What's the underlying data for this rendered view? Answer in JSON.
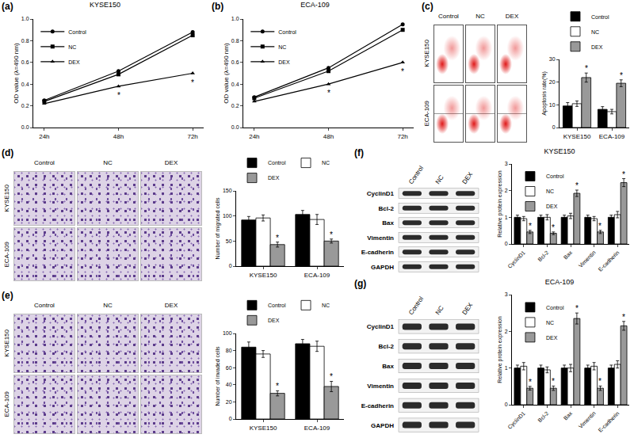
{
  "chart_data": [
    {
      "panel_label": "(a)",
      "type": "line",
      "title": "KYSE150",
      "categories": [
        "24h",
        "48h",
        "72h"
      ],
      "y_label": "OD value (λ=490 nm)",
      "ylim": [
        0,
        1
      ],
      "yticks": [
        {
          "value": 0,
          "label": "0.0"
        },
        {
          "value": 0.2,
          "label": "0.2"
        },
        {
          "value": 0.4,
          "label": "0.4"
        },
        {
          "value": 0.6,
          "label": "0.6"
        },
        {
          "value": 0.8,
          "label": "0.8"
        },
        {
          "value": 1,
          "label": "1.0"
        }
      ],
      "legend": "upper left",
      "series": [
        {
          "name": "Control",
          "color": "#000000",
          "marker": "circle",
          "values": [
            0.25,
            0.52,
            0.88
          ]
        },
        {
          "name": "NC",
          "color": "#000000",
          "marker": "square",
          "values": [
            0.24,
            0.49,
            0.85
          ]
        },
        {
          "name": "DEX",
          "color": "#000000",
          "marker": "triangle-up",
          "values": [
            0.22,
            0.38,
            0.5
          ],
          "annotations": [
            null,
            "*",
            "*"
          ]
        }
      ]
    },
    {
      "panel_label": "(b)",
      "type": "line",
      "title": "ECA-109",
      "categories": [
        "24h",
        "48h",
        "72h"
      ],
      "y_label": "OD value (λ=490 nm)",
      "ylim": [
        0,
        1
      ],
      "yticks": [
        {
          "value": 0,
          "label": "0.0"
        },
        {
          "value": 0.2,
          "label": "0.2"
        },
        {
          "value": 0.4,
          "label": "0.4"
        },
        {
          "value": 0.6,
          "label": "0.6"
        },
        {
          "value": 0.8,
          "label": "0.8"
        },
        {
          "value": 1,
          "label": "1.0"
        }
      ],
      "legend": "upper left",
      "series": [
        {
          "name": "Control",
          "color": "#000000",
          "marker": "circle",
          "values": [
            0.28,
            0.55,
            0.95
          ]
        },
        {
          "name": "NC",
          "color": "#000000",
          "marker": "square",
          "values": [
            0.27,
            0.52,
            0.9
          ]
        },
        {
          "name": "DEX",
          "color": "#000000",
          "marker": "triangle-up",
          "values": [
            0.24,
            0.4,
            0.6
          ],
          "annotations": [
            null,
            "*",
            "*"
          ]
        }
      ]
    },
    {
      "type": "bar",
      "categories": [
        "KYSE150",
        "ECA-109"
      ],
      "y_label": "Apoptosis rate(%)",
      "ylim": [
        0,
        30
      ],
      "yticks": [
        0,
        10,
        20,
        30
      ],
      "legend": "top",
      "series": [
        {
          "name": "Control",
          "color": "#000000",
          "values": [
            9.5,
            8
          ],
          "errors": [
            1.5,
            1.2
          ]
        },
        {
          "name": "NC",
          "color": "#ffffff",
          "values": [
            10.5,
            7
          ],
          "errors": [
            1.2,
            1
          ]
        },
        {
          "name": "DEX",
          "color": "#999999",
          "values": [
            22,
            19.5
          ],
          "errors": [
            2,
            1.5
          ],
          "annotations": [
            "*",
            "*"
          ]
        }
      ]
    },
    {
      "type": "bar",
      "categories": [
        "KYSE150",
        "ECA-109"
      ],
      "y_label": "Number of migrated cells",
      "ylim": [
        0,
        150
      ],
      "yticks": [
        0,
        50,
        100,
        150
      ],
      "legend": "top",
      "series": [
        {
          "name": "Control",
          "color": "#000000",
          "values": [
            92,
            103
          ],
          "errors": [
            7,
            8
          ]
        },
        {
          "name": "NC",
          "color": "#ffffff",
          "values": [
            96,
            93
          ],
          "errors": [
            6,
            10
          ]
        },
        {
          "name": "DEX",
          "color": "#999999",
          "values": [
            43,
            50
          ],
          "errors": [
            5,
            4
          ],
          "annotations": [
            "*",
            "*"
          ]
        }
      ]
    },
    {
      "type": "bar",
      "categories": [
        "KYSE150",
        "ECA-109"
      ],
      "y_label": "Number of invaded cells",
      "ylim": [
        0,
        100
      ],
      "yticks": [
        0,
        20,
        40,
        60,
        80,
        100
      ],
      "legend": "top",
      "series": [
        {
          "name": "Control",
          "color": "#000000",
          "values": [
            84,
            88
          ],
          "errors": [
            6,
            5
          ]
        },
        {
          "name": "NC",
          "color": "#ffffff",
          "values": [
            76,
            85
          ],
          "errors": [
            4,
            6
          ]
        },
        {
          "name": "DEX",
          "color": "#999999",
          "values": [
            30,
            38
          ],
          "errors": [
            3,
            6
          ],
          "annotations": [
            "*",
            "*"
          ]
        }
      ]
    },
    {
      "type": "bar",
      "title": "KYSE150",
      "categories": [
        "CyclinD1",
        "Bcl-2",
        "Bax",
        "Vimentin",
        "E-cadherin"
      ],
      "y_label": "Relative protein expression",
      "ylim": [
        0,
        3
      ],
      "yticks": [
        0,
        1,
        2,
        3
      ],
      "legend": "upper left",
      "series": [
        {
          "name": "Control",
          "color": "#000000",
          "values": [
            1,
            1,
            1,
            1,
            1
          ],
          "errors": [
            0.08,
            0.08,
            0.08,
            0.08,
            0.08
          ]
        },
        {
          "name": "NC",
          "color": "#ffffff",
          "values": [
            0.95,
            1,
            1.05,
            0.95,
            1.1
          ],
          "errors": [
            0.08,
            0.1,
            0.1,
            0.08,
            0.12
          ]
        },
        {
          "name": "DEX",
          "color": "#999999",
          "values": [
            0.45,
            0.4,
            1.9,
            0.45,
            2.3
          ],
          "errors": [
            0.06,
            0.05,
            0.12,
            0.06,
            0.15
          ],
          "annotations": [
            "*",
            "*",
            "*",
            "*",
            "*"
          ]
        }
      ]
    },
    {
      "type": "bar",
      "title": "ECA-109",
      "categories": [
        "CyclinD1",
        "Bcl-2",
        "Bax",
        "Vimentin",
        "E-cadherin"
      ],
      "y_label": "Relative protein expression",
      "ylim": [
        0,
        3
      ],
      "yticks": [
        0,
        1,
        2,
        3
      ],
      "legend": "upper left",
      "series": [
        {
          "name": "Control",
          "color": "#000000",
          "values": [
            1,
            1,
            1,
            1,
            1
          ],
          "errors": [
            0.08,
            0.08,
            0.08,
            0.08,
            0.08
          ]
        },
        {
          "name": "NC",
          "color": "#ffffff",
          "values": [
            1.05,
            0.95,
            1,
            1.05,
            1.1
          ],
          "errors": [
            0.1,
            0.08,
            0.1,
            0.1,
            0.1
          ]
        },
        {
          "name": "DEX",
          "color": "#999999",
          "values": [
            0.45,
            0.45,
            2.35,
            0.45,
            2.15
          ],
          "errors": [
            0.05,
            0.06,
            0.15,
            0.06,
            0.12
          ],
          "annotations": [
            "*",
            "*",
            "*",
            "*",
            "*"
          ]
        }
      ]
    }
  ],
  "figure_panels": [
    {
      "panel_label": "(c)",
      "type": "flow_cytometry_grid",
      "columns": [
        "Control",
        "NC",
        "DEX"
      ],
      "rows": [
        "KYSE150",
        "ECA-109"
      ]
    },
    {
      "panel_label": "(d)",
      "type": "micrograph_grid",
      "columns": [
        "Control",
        "NC",
        "DEX"
      ],
      "rows": [
        "KYSE150",
        "ECA-109"
      ]
    },
    {
      "panel_label": "(e)",
      "type": "micrograph_grid",
      "columns": [
        "Control",
        "NC",
        "DEX"
      ],
      "rows": [
        "KYSE150",
        "ECA-109"
      ]
    },
    {
      "panel_label": "(f)",
      "type": "western_blot",
      "lanes": [
        "Control",
        "NC",
        "DEX"
      ],
      "proteins": [
        "CyclinD1",
        "Bcl-2",
        "Bax",
        "Vimentin",
        "E-cadherin",
        "GAPDH"
      ]
    },
    {
      "panel_label": "(g)",
      "type": "western_blot",
      "lanes": [
        "Control",
        "NC",
        "DEX"
      ],
      "proteins": [
        "CyclinD1",
        "Bcl-2",
        "Bax",
        "Vimentin",
        "E-cadherin",
        "GAPDH"
      ]
    }
  ]
}
